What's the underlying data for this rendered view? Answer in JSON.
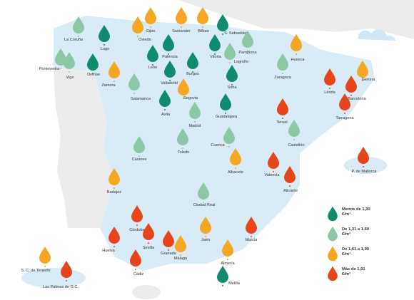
{
  "tiers": [
    {
      "label": "Menos de 1,30 €/m³",
      "color": "#0f8c6e",
      "cities": [
        "Lugo",
        "Orense",
        "León",
        "Palencia",
        "Valladolid",
        "Burgos",
        "Vitoria",
        "S. Sebastián",
        "Soria",
        "Ávila",
        "Guadalajara",
        "Melilla"
      ]
    },
    {
      "label": "De 1,31 a 1,60 €/m³",
      "color": "#8cc7a6",
      "cities": [
        "La Coruña",
        "Pontevedra",
        "Vigo",
        "Salamanca",
        "Madrid",
        "Logroño",
        "Pamplona",
        "Zaragoza",
        "Cáceres",
        "Toledo",
        "Cuenca",
        "Ciudad Real",
        "Castellón"
      ]
    },
    {
      "label": "De 1,61 a 1,90 €/m³",
      "color": "#f5a623",
      "cities": [
        "Gijón",
        "Oviedo",
        "Santander",
        "Bilbao",
        "Zamora",
        "Segovia",
        "Huesca",
        "Gerona",
        "Albacete",
        "Badajoz",
        "Jaén",
        "Málaga",
        "Almería",
        "S. C. de Tenerife"
      ]
    },
    {
      "label": "Más de 1,91 €/m³",
      "color": "#e5461c",
      "cities": [
        "Lérida",
        "Barcelona",
        "Tarragona",
        "Teruel",
        "Valencia",
        "Alicante",
        "P. de Mallorca",
        "Córdoba",
        "Huelva",
        "Sevilla",
        "Granada",
        "Cádiz",
        "Murcia",
        "Las Palmas de G.C."
      ]
    }
  ]
}
